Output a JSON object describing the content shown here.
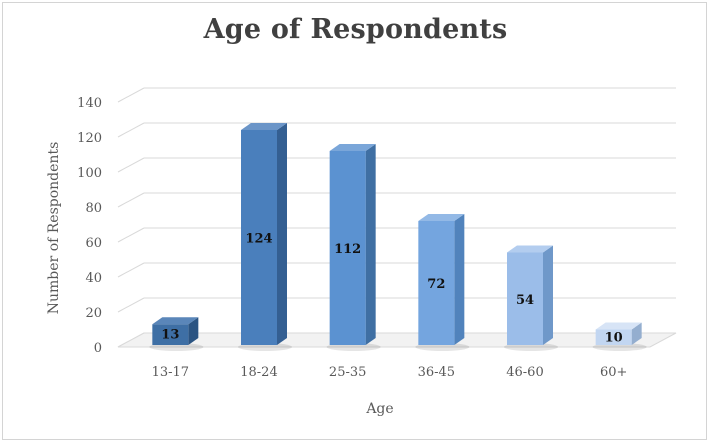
{
  "chart_data": {
    "type": "bar",
    "title": "Age of Respondents",
    "xlabel": "Age",
    "ylabel": "Number of Respondents",
    "categories": [
      "13-17",
      "18-24",
      "25-35",
      "36-45",
      "46-60",
      "60+"
    ],
    "values": [
      13,
      124,
      112,
      72,
      54,
      10
    ],
    "ylim": [
      0,
      140
    ],
    "yticks": [
      "0",
      "20",
      "40",
      "60",
      "80",
      "100",
      "120",
      "140"
    ],
    "grid": true,
    "bar_colors": [
      {
        "front": "#3e6fa5",
        "side": "#2b5482",
        "top": "#5a86b9"
      },
      {
        "front": "#4a7fbc",
        "side": "#345f92",
        "top": "#6b95c8"
      },
      {
        "front": "#5b92d1",
        "side": "#3f6fa3",
        "top": "#7aa6d9"
      },
      {
        "front": "#74a5df",
        "side": "#5183bc",
        "top": "#93b9e6"
      },
      {
        "front": "#9bbde9",
        "side": "#6f98c9",
        "top": "#b3cdef"
      },
      {
        "front": "#c2d6f1",
        "side": "#94aecf",
        "top": "#d7e4f6"
      }
    ],
    "grid_color": "#d9d9d9"
  }
}
